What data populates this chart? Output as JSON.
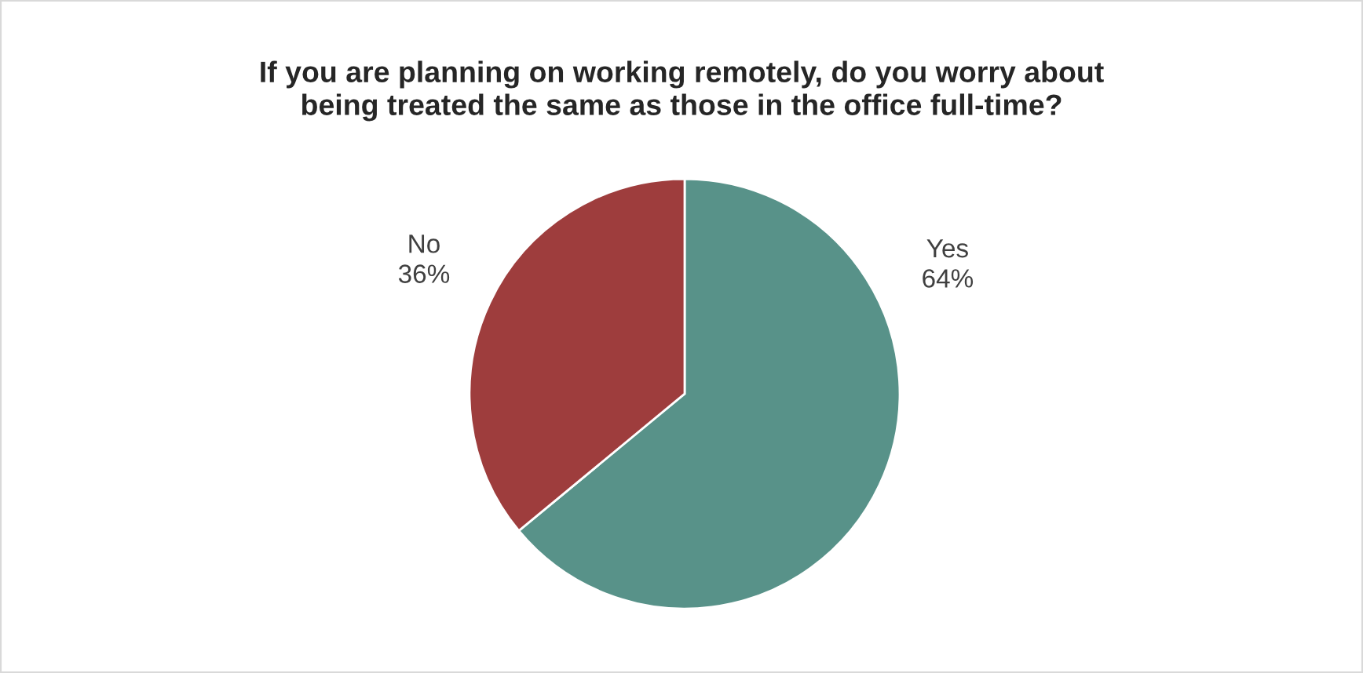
{
  "chart_data": {
    "type": "pie",
    "title": "If you are planning on working remotely, do you worry about being treated the same as those in the office full-time?",
    "categories": [
      "Yes",
      "No"
    ],
    "values": [
      64,
      36
    ],
    "value_labels": [
      "64%",
      "36%"
    ],
    "colors": [
      "#589289",
      "#9e3d3d"
    ],
    "legend": false
  }
}
